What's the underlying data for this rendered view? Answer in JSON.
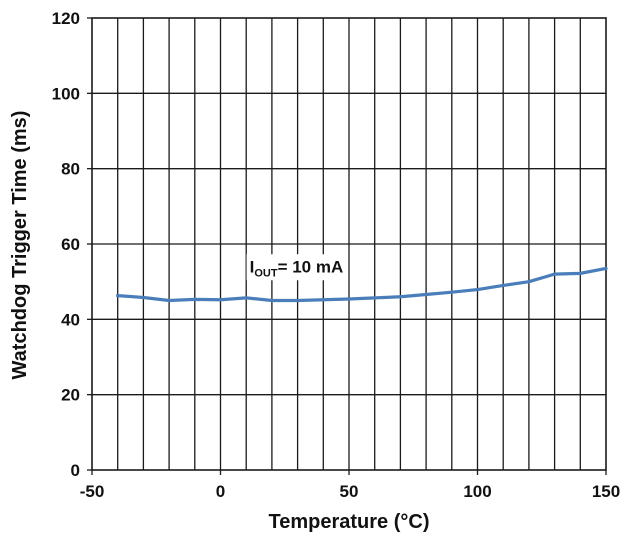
{
  "chart_data": {
    "type": "line",
    "title": "",
    "xlabel": "Temperature (°C)",
    "ylabel": "Watchdog Trigger Time (ms)",
    "xlim": [
      -50,
      150
    ],
    "ylim": [
      0,
      120
    ],
    "x_ticks": [
      -50,
      0,
      50,
      100,
      150
    ],
    "y_ticks": [
      0,
      20,
      40,
      60,
      80,
      100,
      120
    ],
    "x_minor_grid_step": 10,
    "y_grid_step": 20,
    "grid": true,
    "legend": "none",
    "series": [
      {
        "color": "#4a7ebb",
        "x": [
          -40,
          -30,
          -20,
          -10,
          0,
          10,
          20,
          30,
          40,
          50,
          60,
          70,
          80,
          90,
          100,
          110,
          120,
          130,
          140,
          150
        ],
        "values": [
          46.3,
          45.8,
          45.0,
          45.3,
          45.2,
          45.7,
          45.0,
          45.0,
          45.2,
          45.4,
          45.7,
          46.0,
          46.6,
          47.2,
          47.9,
          49.0,
          50.0,
          52.0,
          52.2,
          53.5
        ]
      }
    ],
    "annotations": [
      {
        "main": "I",
        "subscript": "OUT",
        "rest": "= 10 mA",
        "anchor_x": 30,
        "anchor_y": 52.5
      }
    ]
  }
}
